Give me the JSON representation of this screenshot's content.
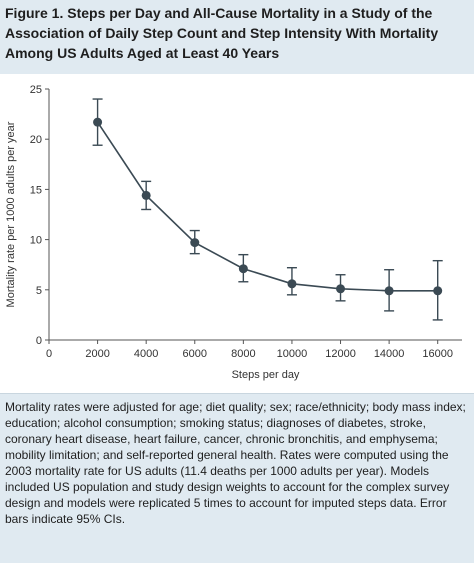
{
  "figure": {
    "title": "Figure 1. Steps per Day and All-Cause Mortality in a Study of the Association of Daily Step Count and Step Intensity With Mortality Among US Adults Aged at Least 40 Years",
    "caption": "Mortality rates were adjusted for age; diet quality; sex; race/ethnicity; body mass index; education; alcohol consumption; smoking status; diagnoses of diabetes, stroke, coronary heart disease, heart failure, cancer, chronic bronchitis, and emphysema; mobility limitation; and self-reported general health. Rates were computed using the 2003 mortality rate for US adults (11.4 deaths per 1000 adults per year). Models included US population and study design weights to account for the complex survey design and models were replicated 5 times to account for imputed steps data. Error bars indicate 95% CIs."
  },
  "chart_data": {
    "type": "line",
    "xlabel": "Steps per day",
    "ylabel": "Mortality rate per 1000 adults per year",
    "x": [
      2000,
      4000,
      6000,
      8000,
      10000,
      12000,
      14000,
      16000
    ],
    "x_tick_labels": [
      "0",
      "2000",
      "4000",
      "6000",
      "8000",
      "10000",
      "12000",
      "14000",
      "16000"
    ],
    "y_ticks": [
      0,
      5,
      10,
      15,
      20,
      25
    ],
    "xlim": [
      0,
      17000
    ],
    "ylim": [
      0,
      25
    ],
    "series": [
      {
        "values": [
          21.7,
          14.4,
          9.7,
          7.1,
          5.6,
          5.1,
          4.9,
          4.9
        ],
        "ci_lower": [
          19.4,
          13.0,
          8.6,
          5.8,
          4.5,
          3.9,
          2.9,
          2.0
        ],
        "ci_upper": [
          24.0,
          15.8,
          10.9,
          8.5,
          7.2,
          6.5,
          7.0,
          7.9
        ],
        "color": "#3b4a54"
      }
    ],
    "grid": false,
    "legend": "none"
  }
}
